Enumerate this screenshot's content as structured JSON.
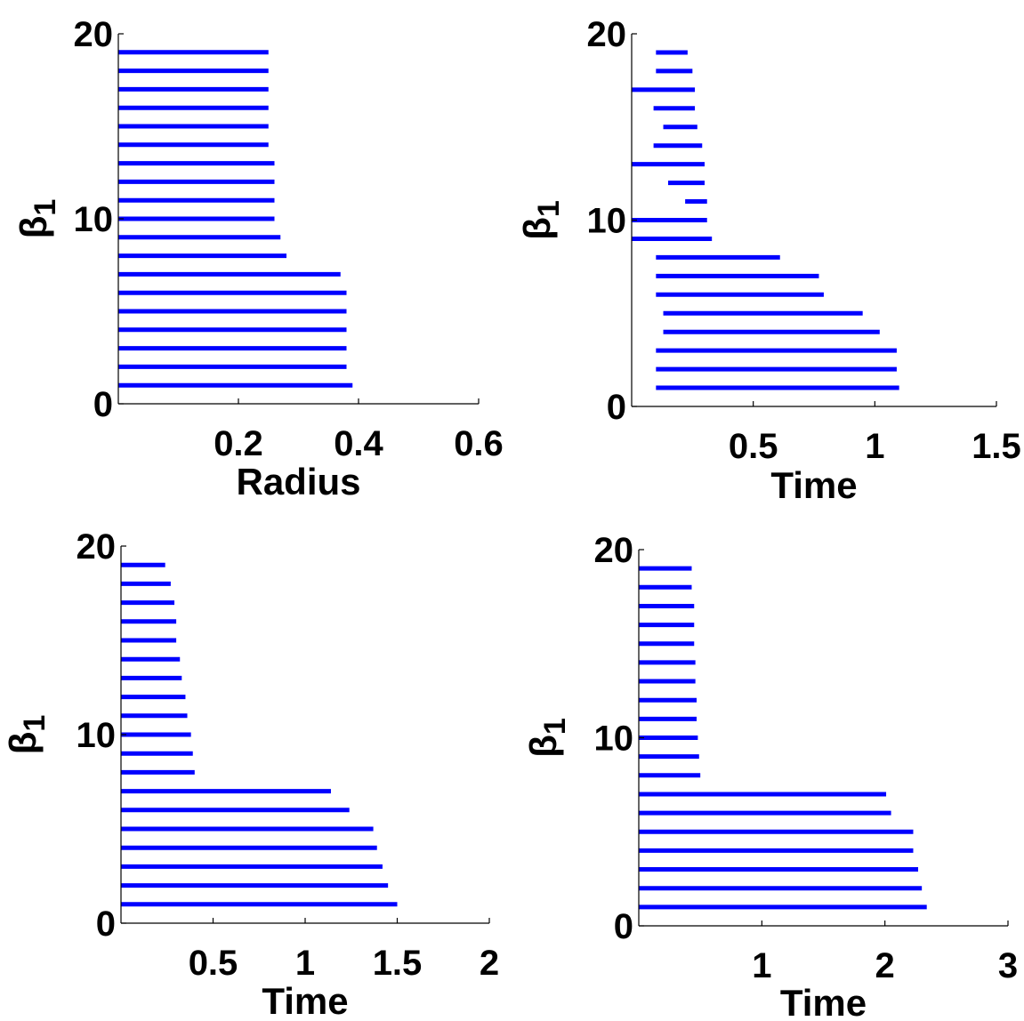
{
  "figure": {
    "bar_color": "#0000FF",
    "axis_color": "#000000"
  },
  "chart_data": [
    {
      "type": "barcode",
      "xlabel": "Radius",
      "ylabel": "β",
      "ylabel_subscript": "1",
      "xlim": [
        0,
        0.6
      ],
      "ylim": [
        0,
        20
      ],
      "xticks": [
        0.2,
        0.4,
        0.6
      ],
      "xtick_labels": [
        "0.2",
        "0.4",
        "0.6"
      ],
      "yticks": [
        0,
        10,
        20
      ],
      "ytick_labels": [
        "0",
        "10",
        "20"
      ],
      "bars": [
        {
          "y": 1,
          "start": 0,
          "end": 0.39
        },
        {
          "y": 2,
          "start": 0,
          "end": 0.38
        },
        {
          "y": 3,
          "start": 0,
          "end": 0.38
        },
        {
          "y": 4,
          "start": 0,
          "end": 0.38
        },
        {
          "y": 5,
          "start": 0,
          "end": 0.38
        },
        {
          "y": 6,
          "start": 0,
          "end": 0.38
        },
        {
          "y": 7,
          "start": 0,
          "end": 0.37
        },
        {
          "y": 8,
          "start": 0,
          "end": 0.28
        },
        {
          "y": 9,
          "start": 0,
          "end": 0.27
        },
        {
          "y": 10,
          "start": 0,
          "end": 0.26
        },
        {
          "y": 11,
          "start": 0,
          "end": 0.26
        },
        {
          "y": 12,
          "start": 0,
          "end": 0.26
        },
        {
          "y": 13,
          "start": 0,
          "end": 0.26
        },
        {
          "y": 14,
          "start": 0,
          "end": 0.25
        },
        {
          "y": 15,
          "start": 0,
          "end": 0.25
        },
        {
          "y": 16,
          "start": 0,
          "end": 0.25
        },
        {
          "y": 17,
          "start": 0,
          "end": 0.25
        },
        {
          "y": 18,
          "start": 0,
          "end": 0.25
        },
        {
          "y": 19,
          "start": 0,
          "end": 0.25
        }
      ]
    },
    {
      "type": "barcode",
      "xlabel": "Time",
      "ylabel": "β",
      "ylabel_subscript": "1",
      "xlim": [
        0,
        1.5
      ],
      "ylim": [
        0,
        20
      ],
      "xticks": [
        0.5,
        1,
        1.5
      ],
      "xtick_labels": [
        "0.5",
        "1",
        "1.5"
      ],
      "yticks": [
        0,
        10,
        20
      ],
      "ytick_labels": [
        "0",
        "10",
        "20"
      ],
      "bars": [
        {
          "y": 1,
          "start": 0.1,
          "end": 1.1
        },
        {
          "y": 2,
          "start": 0.1,
          "end": 1.09
        },
        {
          "y": 3,
          "start": 0.1,
          "end": 1.09
        },
        {
          "y": 4,
          "start": 0.13,
          "end": 1.02
        },
        {
          "y": 5,
          "start": 0.13,
          "end": 0.95
        },
        {
          "y": 6,
          "start": 0.1,
          "end": 0.79
        },
        {
          "y": 7,
          "start": 0.1,
          "end": 0.77
        },
        {
          "y": 8,
          "start": 0.1,
          "end": 0.61
        },
        {
          "y": 9,
          "start": 0,
          "end": 0.33
        },
        {
          "y": 10,
          "start": 0,
          "end": 0.31
        },
        {
          "y": 11,
          "start": 0.22,
          "end": 0.31
        },
        {
          "y": 12,
          "start": 0.15,
          "end": 0.3
        },
        {
          "y": 13,
          "start": 0,
          "end": 0.3
        },
        {
          "y": 14,
          "start": 0.09,
          "end": 0.29
        },
        {
          "y": 15,
          "start": 0.13,
          "end": 0.27
        },
        {
          "y": 16,
          "start": 0.09,
          "end": 0.26
        },
        {
          "y": 17,
          "start": 0,
          "end": 0.26
        },
        {
          "y": 18,
          "start": 0.1,
          "end": 0.25
        },
        {
          "y": 19,
          "start": 0.1,
          "end": 0.23
        }
      ]
    },
    {
      "type": "barcode",
      "xlabel": "Time",
      "ylabel": "β",
      "ylabel_subscript": "1",
      "xlim": [
        0,
        2
      ],
      "ylim": [
        0,
        20
      ],
      "xticks": [
        0.5,
        1,
        1.5,
        2
      ],
      "xtick_labels": [
        "0.5",
        "1",
        "1.5",
        "2"
      ],
      "yticks": [
        0,
        10,
        20
      ],
      "ytick_labels": [
        "0",
        "10",
        "20"
      ],
      "bars": [
        {
          "y": 1,
          "start": 0,
          "end": 1.5
        },
        {
          "y": 2,
          "start": 0,
          "end": 1.45
        },
        {
          "y": 3,
          "start": 0,
          "end": 1.42
        },
        {
          "y": 4,
          "start": 0,
          "end": 1.39
        },
        {
          "y": 5,
          "start": 0,
          "end": 1.37
        },
        {
          "y": 6,
          "start": 0,
          "end": 1.24
        },
        {
          "y": 7,
          "start": 0,
          "end": 1.14
        },
        {
          "y": 8,
          "start": 0,
          "end": 0.4
        },
        {
          "y": 9,
          "start": 0,
          "end": 0.39
        },
        {
          "y": 10,
          "start": 0,
          "end": 0.38
        },
        {
          "y": 11,
          "start": 0,
          "end": 0.36
        },
        {
          "y": 12,
          "start": 0,
          "end": 0.35
        },
        {
          "y": 13,
          "start": 0,
          "end": 0.33
        },
        {
          "y": 14,
          "start": 0,
          "end": 0.32
        },
        {
          "y": 15,
          "start": 0,
          "end": 0.3
        },
        {
          "y": 16,
          "start": 0,
          "end": 0.3
        },
        {
          "y": 17,
          "start": 0,
          "end": 0.29
        },
        {
          "y": 18,
          "start": 0,
          "end": 0.27
        },
        {
          "y": 19,
          "start": 0,
          "end": 0.24
        }
      ]
    },
    {
      "type": "barcode",
      "xlabel": "Time",
      "ylabel": "β",
      "ylabel_subscript": "1",
      "xlim": [
        0,
        3
      ],
      "ylim": [
        0,
        20
      ],
      "xticks": [
        1,
        2,
        3
      ],
      "xtick_labels": [
        "1",
        "2",
        "3"
      ],
      "yticks": [
        0,
        10,
        20
      ],
      "ytick_labels": [
        "0",
        "10",
        "20"
      ],
      "bars": [
        {
          "y": 1,
          "start": 0,
          "end": 2.34
        },
        {
          "y": 2,
          "start": 0,
          "end": 2.3
        },
        {
          "y": 3,
          "start": 0,
          "end": 2.27
        },
        {
          "y": 4,
          "start": 0,
          "end": 2.23
        },
        {
          "y": 5,
          "start": 0,
          "end": 2.23
        },
        {
          "y": 6,
          "start": 0,
          "end": 2.05
        },
        {
          "y": 7,
          "start": 0,
          "end": 2.01
        },
        {
          "y": 8,
          "start": 0,
          "end": 0.5
        },
        {
          "y": 9,
          "start": 0,
          "end": 0.49
        },
        {
          "y": 10,
          "start": 0,
          "end": 0.48
        },
        {
          "y": 11,
          "start": 0,
          "end": 0.47
        },
        {
          "y": 12,
          "start": 0,
          "end": 0.47
        },
        {
          "y": 13,
          "start": 0,
          "end": 0.46
        },
        {
          "y": 14,
          "start": 0,
          "end": 0.46
        },
        {
          "y": 15,
          "start": 0,
          "end": 0.45
        },
        {
          "y": 16,
          "start": 0,
          "end": 0.45
        },
        {
          "y": 17,
          "start": 0,
          "end": 0.45
        },
        {
          "y": 18,
          "start": 0,
          "end": 0.43
        },
        {
          "y": 19,
          "start": 0,
          "end": 0.43
        }
      ]
    }
  ]
}
